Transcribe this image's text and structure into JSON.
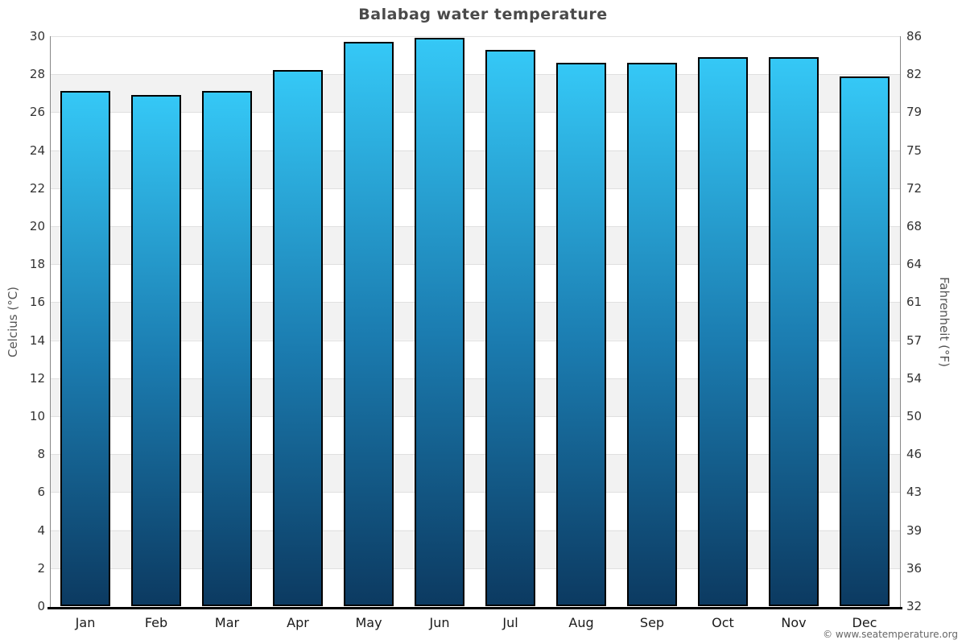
{
  "title": "Balabag water temperature",
  "watermark": "© www.seatemperature.org",
  "axes": {
    "left_label": "Celcius (°C)",
    "right_label": "Fahrenheit (°F)",
    "celsius_ticks": [
      0,
      2,
      4,
      6,
      8,
      10,
      12,
      14,
      16,
      18,
      20,
      22,
      24,
      26,
      28,
      30
    ],
    "fahrenheit_ticks": [
      32,
      36,
      39,
      43,
      46,
      50,
      54,
      57,
      61,
      64,
      68,
      72,
      75,
      79,
      82,
      86
    ]
  },
  "chart_data": {
    "type": "bar",
    "title": "Balabag water temperature",
    "categories": [
      "Jan",
      "Feb",
      "Mar",
      "Apr",
      "May",
      "Jun",
      "Jul",
      "Aug",
      "Sep",
      "Oct",
      "Nov",
      "Dec"
    ],
    "values": [
      27.1,
      26.9,
      27.1,
      28.2,
      29.7,
      29.9,
      29.3,
      28.6,
      28.6,
      28.9,
      28.9,
      27.9
    ],
    "unit": "°C",
    "ylabel_left": "Celcius (°C)",
    "ylabel_right": "Fahrenheit (°F)",
    "ylim_celsius": [
      0,
      30
    ],
    "ylim_fahrenheit": [
      32,
      86
    ],
    "tick_step_celsius": 2,
    "grid": true,
    "legend": false,
    "colors": {
      "bar_gradient_top": "#35c8f6",
      "bar_gradient_mid": "#1b7cb0",
      "bar_gradient_bottom": "#0c3a61",
      "bar_border": "#000000",
      "band_white": "#ffffff",
      "band_gray": "#f2f2f2",
      "gridline": "#e0e0e0",
      "axis_line": "#000000",
      "title_color": "#4a4a4a"
    }
  }
}
